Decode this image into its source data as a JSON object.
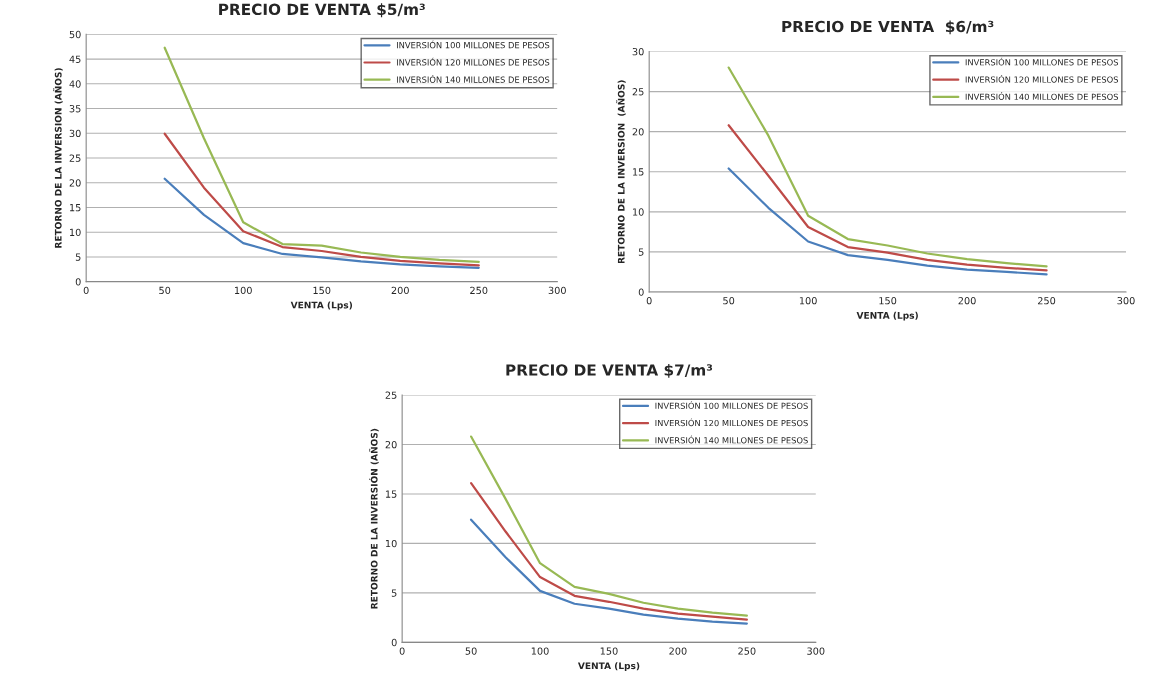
{
  "chart_data": [
    {
      "type": "line",
      "title": "PRECIO DE VENTA $5/m³",
      "xlabel": "VENTA (Lps)",
      "ylabel": "RETORNO DE LA INVERSION (AÑOS)",
      "x": [
        50,
        75,
        100,
        125,
        150,
        175,
        200,
        225,
        250
      ],
      "xlim": [
        0,
        300
      ],
      "xticks": [
        0,
        50,
        100,
        150,
        200,
        250,
        300
      ],
      "ylim": [
        0,
        50
      ],
      "yticks": [
        0,
        5,
        10,
        15,
        20,
        25,
        30,
        35,
        40,
        45,
        50
      ],
      "grid": "y",
      "legend": "top right",
      "marker": "none",
      "series": [
        {
          "name": "INVERSIÓN 100 MILLONES DE PESOS",
          "color": "#4a7ebb",
          "values": [
            20.8,
            13.5,
            7.8,
            5.6,
            4.9,
            4.1,
            3.5,
            3.1,
            2.8
          ]
        },
        {
          "name": "INVERSIÓN 120 MILLONES DE PESOS",
          "color": "#be4b48",
          "values": [
            29.9,
            19,
            10.2,
            7,
            6.2,
            5,
            4.2,
            3.7,
            3.3
          ]
        },
        {
          "name": "INVERSIÓN 140 MILLONES DE PESOS",
          "color": "#98b954",
          "values": [
            47.3,
            29,
            12,
            7.6,
            7.3,
            5.9,
            5,
            4.4,
            4
          ]
        }
      ]
    },
    {
      "type": "line",
      "title": "PRECIO DE VENTA  $6/m³",
      "xlabel": "VENTA (Lps)",
      "ylabel": "RETORNO DE LA INVERSION  (AÑOS)",
      "x": [
        50,
        75,
        100,
        125,
        150,
        175,
        200,
        225,
        250
      ],
      "xlim": [
        0,
        300
      ],
      "xticks": [
        0,
        50,
        100,
        150,
        200,
        250,
        300
      ],
      "ylim": [
        0,
        30
      ],
      "yticks": [
        0,
        5,
        10,
        15,
        20,
        25,
        30
      ],
      "grid": "y",
      "legend": "top right",
      "marker": "none",
      "series": [
        {
          "name": "INVERSIÓN 100 MILLONES DE PESOS",
          "color": "#4a7ebb",
          "values": [
            15.4,
            10.5,
            6.3,
            4.6,
            4,
            3.3,
            2.8,
            2.5,
            2.2
          ]
        },
        {
          "name": "INVERSIÓN 120 MILLONES DE PESOS",
          "color": "#be4b48",
          "values": [
            20.8,
            14.5,
            8.1,
            5.6,
            4.9,
            4,
            3.4,
            3,
            2.7
          ]
        },
        {
          "name": "INVERSIÓN 140 MILLONES DE PESOS",
          "color": "#98b954",
          "values": [
            28,
            19.5,
            9.5,
            6.6,
            5.8,
            4.8,
            4.1,
            3.6,
            3.2
          ]
        }
      ]
    },
    {
      "type": "line",
      "title": "PRECIO DE VENTA $7/m³",
      "xlabel": "VENTA (Lps)",
      "ylabel": "RETORNO DE LA INVERSIÓN (AÑOS)",
      "x": [
        50,
        75,
        100,
        125,
        150,
        175,
        200,
        225,
        250
      ],
      "xlim": [
        0,
        300
      ],
      "xticks": [
        0,
        50,
        100,
        150,
        200,
        250,
        300
      ],
      "ylim": [
        0,
        25
      ],
      "yticks": [
        0,
        5,
        10,
        15,
        20,
        25
      ],
      "grid": "y",
      "legend": "top right",
      "marker": "none",
      "series": [
        {
          "name": "INVERSIÓN 100 MILLONES DE PESOS",
          "color": "#4a7ebb",
          "values": [
            12.4,
            8.6,
            5.2,
            3.9,
            3.4,
            2.8,
            2.4,
            2.1,
            1.9
          ]
        },
        {
          "name": "INVERSIÓN 120 MILLONES DE PESOS",
          "color": "#be4b48",
          "values": [
            16.1,
            11.2,
            6.6,
            4.7,
            4.1,
            3.4,
            2.9,
            2.6,
            2.3
          ]
        },
        {
          "name": "INVERSIÓN 140 MILLONES DE PESOS",
          "color": "#98b954",
          "values": [
            20.8,
            14.5,
            8,
            5.6,
            4.9,
            4,
            3.4,
            3,
            2.7
          ]
        }
      ]
    }
  ]
}
